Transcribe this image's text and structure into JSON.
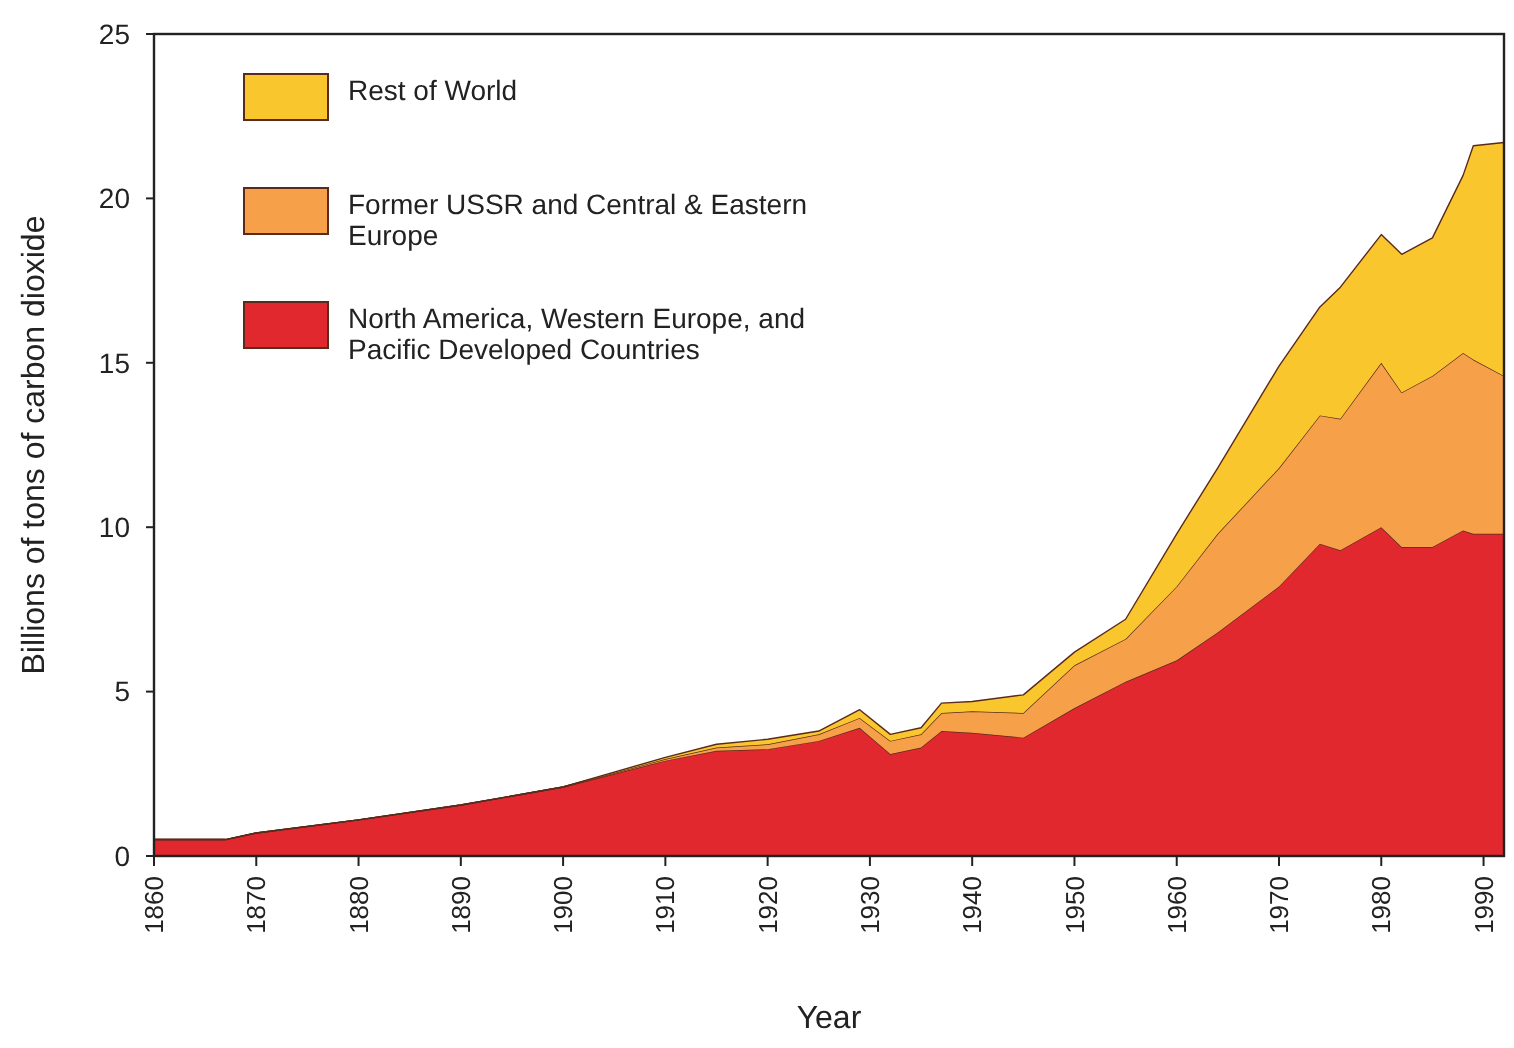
{
  "chart_data": {
    "type": "area",
    "stacked": true,
    "xlabel": "Year",
    "ylabel": "Billions of tons of carbon dioxide",
    "x": [
      1860,
      1867,
      1870,
      1880,
      1890,
      1900,
      1910,
      1915,
      1920,
      1925,
      1929,
      1932,
      1935,
      1937,
      1940,
      1945,
      1950,
      1955,
      1960,
      1964,
      1970,
      1974,
      1976,
      1980,
      1982,
      1985,
      1988,
      1989,
      1992
    ],
    "series": [
      {
        "name": "North America, Western Europe, and Pacific Developed Countries",
        "color": "#e0282e",
        "values": [
          0.5,
          0.5,
          0.7,
          1.1,
          1.55,
          2.1,
          2.9,
          3.2,
          3.25,
          3.5,
          3.9,
          3.1,
          3.3,
          3.8,
          3.75,
          3.6,
          4.5,
          5.3,
          5.95,
          6.8,
          8.2,
          9.5,
          9.3,
          10.0,
          9.4,
          9.4,
          9.9,
          9.8,
          9.8
        ]
      },
      {
        "name": "Former USSR and Central & Eastern Europe",
        "color": "#f7a04a",
        "values": [
          0,
          0,
          0,
          0,
          0,
          0,
          0.05,
          0.1,
          0.15,
          0.2,
          0.3,
          0.4,
          0.4,
          0.55,
          0.65,
          0.75,
          1.3,
          1.3,
          2.25,
          3.0,
          3.6,
          3.9,
          4.0,
          5.0,
          4.7,
          5.2,
          5.4,
          5.3,
          4.8
        ]
      },
      {
        "name": "Rest of World",
        "color": "#f9c62e",
        "values": [
          0,
          0,
          0,
          0,
          0,
          0,
          0.05,
          0.1,
          0.15,
          0.1,
          0.25,
          0.2,
          0.2,
          0.3,
          0.3,
          0.55,
          0.4,
          0.6,
          1.6,
          2.0,
          3.1,
          3.3,
          4.0,
          3.9,
          4.2,
          4.2,
          5.4,
          6.5,
          7.1
        ]
      }
    ],
    "xlim": [
      1860,
      1992
    ],
    "xticks": [
      1860,
      1870,
      1880,
      1890,
      1900,
      1910,
      1920,
      1930,
      1940,
      1950,
      1960,
      1970,
      1980,
      1990
    ],
    "ylim": [
      0,
      25
    ],
    "yticks": [
      0,
      5,
      10,
      15,
      20,
      25
    ],
    "legend": "top left",
    "grid": false
  }
}
